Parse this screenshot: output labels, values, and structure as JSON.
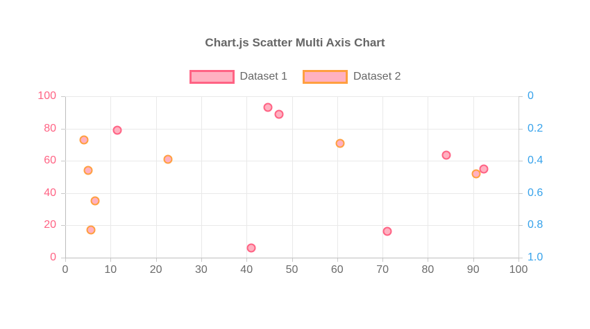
{
  "chart_data": {
    "type": "scatter",
    "title": "Chart.js Scatter Multi Axis Chart",
    "legend_position": "top",
    "grid": true,
    "series": [
      {
        "name": "Dataset 1",
        "axis": "left",
        "borderColor": "#ff6384",
        "backgroundColor": "#ffb1c1",
        "points": [
          {
            "x": 11.5,
            "y": 79
          },
          {
            "x": 44.7,
            "y": 93
          },
          {
            "x": 47.2,
            "y": 89
          },
          {
            "x": 41,
            "y": 6
          },
          {
            "x": 71,
            "y": 16.5
          },
          {
            "x": 84,
            "y": 63.5
          },
          {
            "x": 92.3,
            "y": 55
          }
        ]
      },
      {
        "name": "Dataset 2",
        "axis": "right",
        "borderColor": "#ff9f40",
        "backgroundColor": "#ffb1c1",
        "points": [
          {
            "x": 4.1,
            "y": 0.27
          },
          {
            "x": 5.1,
            "y": 0.46
          },
          {
            "x": 6.6,
            "y": 0.65
          },
          {
            "x": 5.6,
            "y": 0.83
          },
          {
            "x": 22.6,
            "y": 0.39
          },
          {
            "x": 60.7,
            "y": 0.29
          },
          {
            "x": 90.7,
            "y": 0.48
          }
        ]
      }
    ],
    "axes": {
      "x": {
        "min": 0,
        "max": 100,
        "ticks": [
          0,
          10,
          20,
          30,
          40,
          50,
          60,
          70,
          80,
          90,
          100
        ],
        "color": "#6b6b6b"
      },
      "left": {
        "min": 0,
        "max": 100,
        "ticks": [
          100,
          80,
          60,
          40,
          20,
          0
        ],
        "color": "#ff6384"
      },
      "right": {
        "min": 0,
        "max": 1,
        "inverted": true,
        "ticks": [
          "0",
          "0.2",
          "0.4",
          "0.6",
          "0.8",
          "1.0"
        ],
        "color": "#36a2eb"
      }
    }
  }
}
